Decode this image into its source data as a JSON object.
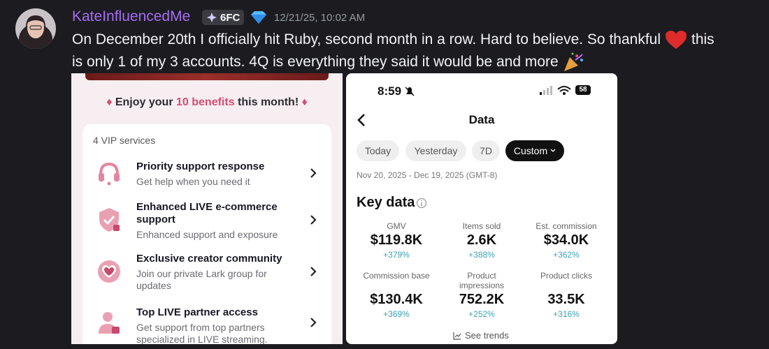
{
  "message": {
    "username": "KateInfluencedMe",
    "badge": "6FC",
    "timestamp": "12/21/25, 10:02 AM",
    "text": [
      "On December 20th I officially hit Ruby, second month in a row. Hard to believe. So thankful",
      "this",
      "is only 1 of my 3 accounts. 4Q is everything they said it would be and more"
    ]
  },
  "left_panel": {
    "banner": [
      "Enjoy your",
      "10 benefits",
      "this month!"
    ],
    "card_title": "4 VIP services",
    "items": [
      {
        "title": "Priority support response",
        "description": "Get help when you need it"
      },
      {
        "title": "Enhanced LIVE e-commerce support",
        "description": "Enhanced support and exposure"
      },
      {
        "title": "Exclusive creator community",
        "description": "Join our private Lark group for updates"
      },
      {
        "title": "Top LIVE partner access",
        "description": "Get support from top partners specialized in LIVE streaming."
      }
    ]
  },
  "right_panel": {
    "time": "8:59",
    "battery": "58",
    "title": "Data",
    "chips": [
      "Today",
      "Yesterday",
      "7D",
      "Custom"
    ],
    "date_range": "Nov 20, 2025 - Dec 19, 2025 (GMT-8)",
    "section_title": "Key data",
    "metrics": [
      {
        "label": "GMV",
        "value": "$119.8K",
        "change": "+379%"
      },
      {
        "label": "Items sold",
        "value": "2.6K",
        "change": "+388%"
      },
      {
        "label": "Est. commission",
        "value": "$34.0K",
        "change": "+362%"
      },
      {
        "label": "Commission base",
        "value": "$130.4K",
        "change": "+369%"
      },
      {
        "label": "Product impressions",
        "value": "752.2K",
        "change": "+252%"
      },
      {
        "label": "Product clicks",
        "value": "33.5K",
        "change": "+316%"
      }
    ],
    "trends_link": "See trends"
  }
}
